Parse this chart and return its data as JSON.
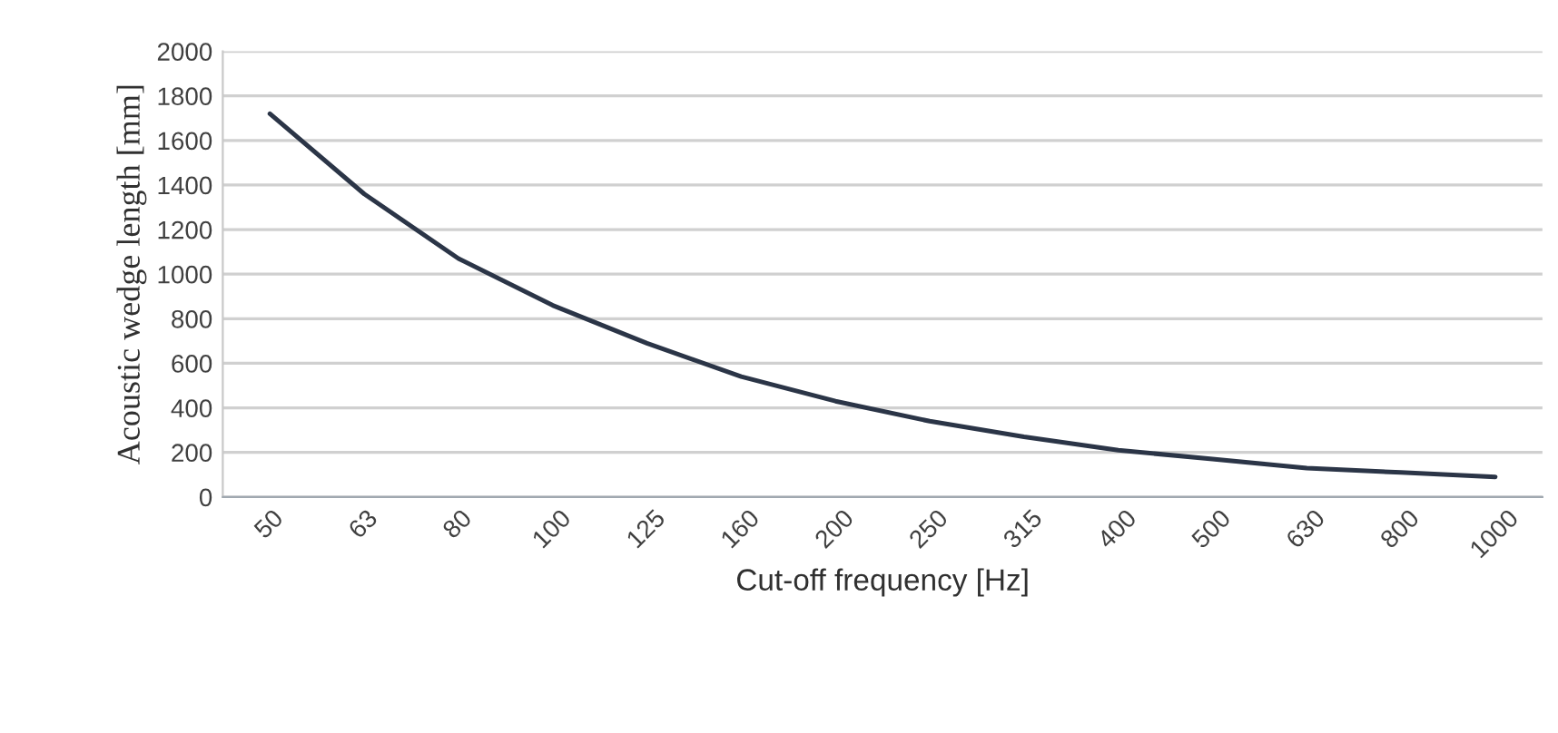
{
  "chart_data": {
    "type": "line",
    "xlabel": "Cut-off frequency [Hz]",
    "ylabel": "Acoustic wedge length [mm]",
    "categories": [
      "50",
      "63",
      "80",
      "100",
      "125",
      "160",
      "200",
      "250",
      "315",
      "400",
      "500",
      "630",
      "800",
      "1000"
    ],
    "series": [
      {
        "color": "#2b3547",
        "values": [
          1720,
          1360,
          1070,
          860,
          690,
          540,
          430,
          340,
          270,
          210,
          170,
          130,
          110,
          90
        ]
      }
    ],
    "ylim": [
      0,
      2000
    ],
    "yticks": [
      0,
      200,
      400,
      600,
      800,
      1000,
      1200,
      1400,
      1600,
      1800,
      2000
    ],
    "grid": "y",
    "legend": false,
    "marker": "none",
    "line_style": "solid"
  }
}
